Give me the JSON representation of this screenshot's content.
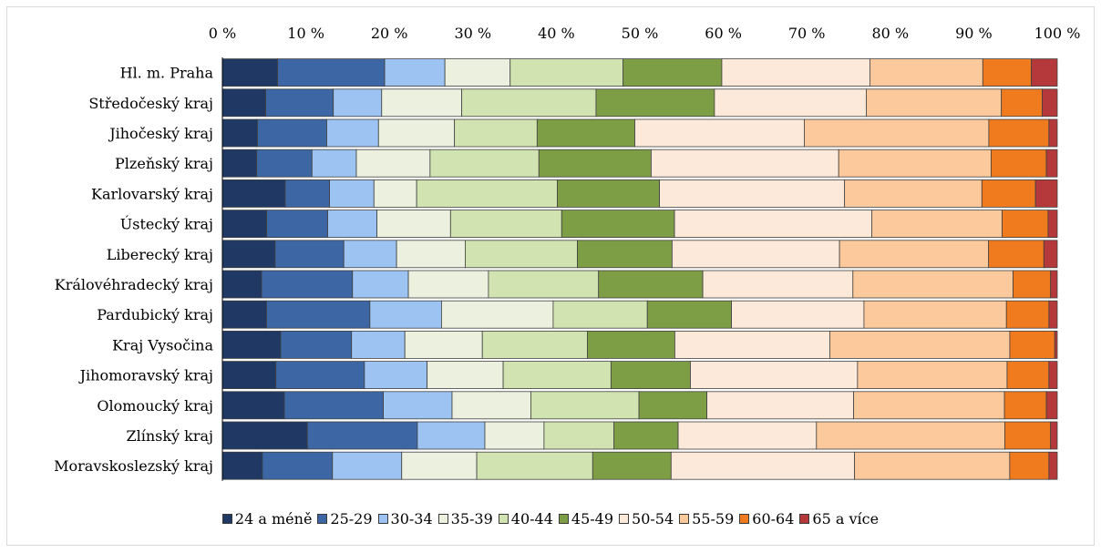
{
  "chart_data": {
    "type": "bar",
    "orientation": "horizontal",
    "stacked": true,
    "percent_stacked": true,
    "categories": [
      "Hl. m. Praha",
      "Středočeský kraj",
      "Jihočeský kraj",
      "Plzeňský kraj",
      "Karlovarský kraj",
      "Ústecký kraj",
      "Liberecký kraj",
      "Královéhradecký kraj",
      "Pardubický kraj",
      "Kraj Vysočina",
      "Jihomoravský kraj",
      "Olomoucký kraj",
      "Zlínský kraj",
      "Moravskoslezský kraj"
    ],
    "x_ticks": [
      "0 %",
      "10 %",
      "20 %",
      "30 %",
      "40 %",
      "50 %",
      "60 %",
      "70 %",
      "80 %",
      "90 %",
      "100 %"
    ],
    "xlim": [
      0,
      100
    ],
    "grid": false,
    "legend_position": "bottom",
    "series": [
      {
        "name": "24 a méně",
        "color": "#1f3864",
        "values": [
          6.6,
          5.2,
          4.2,
          4.1,
          7.5,
          5.3,
          6.3,
          4.7,
          5.3,
          7.0,
          6.4,
          7.4,
          10.2,
          4.8
        ]
      },
      {
        "name": "25-29",
        "color": "#3c66a4",
        "values": [
          12.8,
          8.1,
          8.3,
          6.6,
          5.3,
          7.3,
          8.2,
          10.9,
          12.4,
          8.5,
          10.6,
          11.8,
          13.2,
          8.4
        ]
      },
      {
        "name": "30-34",
        "color": "#9cc3f2",
        "values": [
          7.2,
          5.8,
          6.2,
          5.3,
          5.3,
          5.9,
          6.3,
          6.7,
          8.6,
          6.4,
          7.5,
          8.2,
          8.1,
          8.3
        ]
      },
      {
        "name": "35-39",
        "color": "#ebf1de",
        "values": [
          7.8,
          9.6,
          9.1,
          8.8,
          5.1,
          8.8,
          8.2,
          9.6,
          13.4,
          9.3,
          9.1,
          9.4,
          7.1,
          9.0
        ]
      },
      {
        "name": "40-44",
        "color": "#d1e3b0",
        "values": [
          13.5,
          16.1,
          9.9,
          13.0,
          16.8,
          13.3,
          13.4,
          13.2,
          11.3,
          12.6,
          12.9,
          12.9,
          8.4,
          13.9
        ]
      },
      {
        "name": "45-49",
        "color": "#7e9e45",
        "values": [
          11.8,
          14.2,
          11.7,
          13.4,
          12.2,
          13.5,
          11.3,
          12.5,
          10.1,
          10.5,
          9.5,
          8.1,
          7.7,
          9.4
        ]
      },
      {
        "name": "50-54",
        "color": "#fde9d9",
        "values": [
          17.7,
          18.2,
          20.3,
          22.4,
          22.1,
          23.6,
          20.0,
          18.0,
          15.9,
          18.6,
          20.0,
          17.5,
          16.6,
          22.0
        ]
      },
      {
        "name": "55-59",
        "color": "#fcc99c",
        "values": [
          13.5,
          16.2,
          22.1,
          18.2,
          16.4,
          15.6,
          17.8,
          19.2,
          17.1,
          21.6,
          17.9,
          18.0,
          22.6,
          18.6
        ]
      },
      {
        "name": "60-64",
        "color": "#f07b1f",
        "values": [
          5.8,
          4.9,
          7.2,
          6.6,
          6.4,
          5.5,
          6.6,
          4.5,
          5.1,
          5.4,
          5.0,
          5.0,
          5.5,
          4.7
        ]
      },
      {
        "name": "65 a více",
        "color": "#b5383b",
        "values": [
          3.1,
          1.8,
          1.0,
          1.3,
          2.6,
          1.1,
          1.6,
          0.8,
          1.0,
          0.3,
          1.0,
          1.3,
          0.8,
          1.0
        ]
      }
    ]
  }
}
